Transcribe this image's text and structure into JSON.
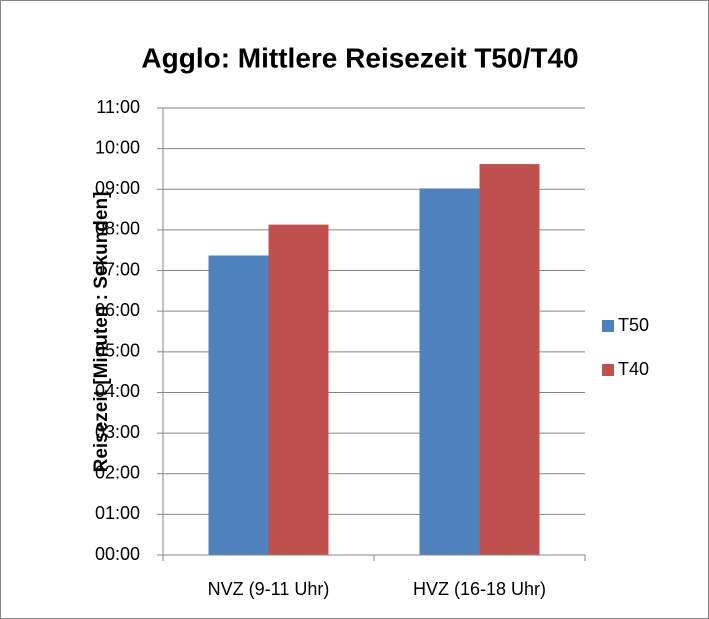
{
  "chart_data": {
    "type": "bar",
    "title": "Agglo: Mittlere Reisezeit T50/T40",
    "y_label": "Reisezeit [Minuten : Sekunden]",
    "categories": [
      "NVZ (9-11 Uhr)",
      "HVZ (16-18 Uhr)"
    ],
    "series": [
      {
        "name": "T50",
        "color": "#4f81bd",
        "values": [
          7.37,
          9.02
        ]
      },
      {
        "name": "T40",
        "color": "#c0504d",
        "values": [
          8.13,
          9.62
        ]
      }
    ],
    "ylim": [
      0,
      11
    ],
    "yticks": [
      {
        "value": 0,
        "label": "00:00"
      },
      {
        "value": 1,
        "label": "01:00"
      },
      {
        "value": 2,
        "label": "02:00"
      },
      {
        "value": 3,
        "label": "03:00"
      },
      {
        "value": 4,
        "label": "04:00"
      },
      {
        "value": 5,
        "label": "05:00"
      },
      {
        "value": 6,
        "label": "06:00"
      },
      {
        "value": 7,
        "label": "07:00"
      },
      {
        "value": 8,
        "label": "08:00"
      },
      {
        "value": 9,
        "label": "09:00"
      },
      {
        "value": 10,
        "label": "10:00"
      },
      {
        "value": 11,
        "label": "11:00"
      }
    ],
    "grid": true,
    "legend": "right"
  }
}
